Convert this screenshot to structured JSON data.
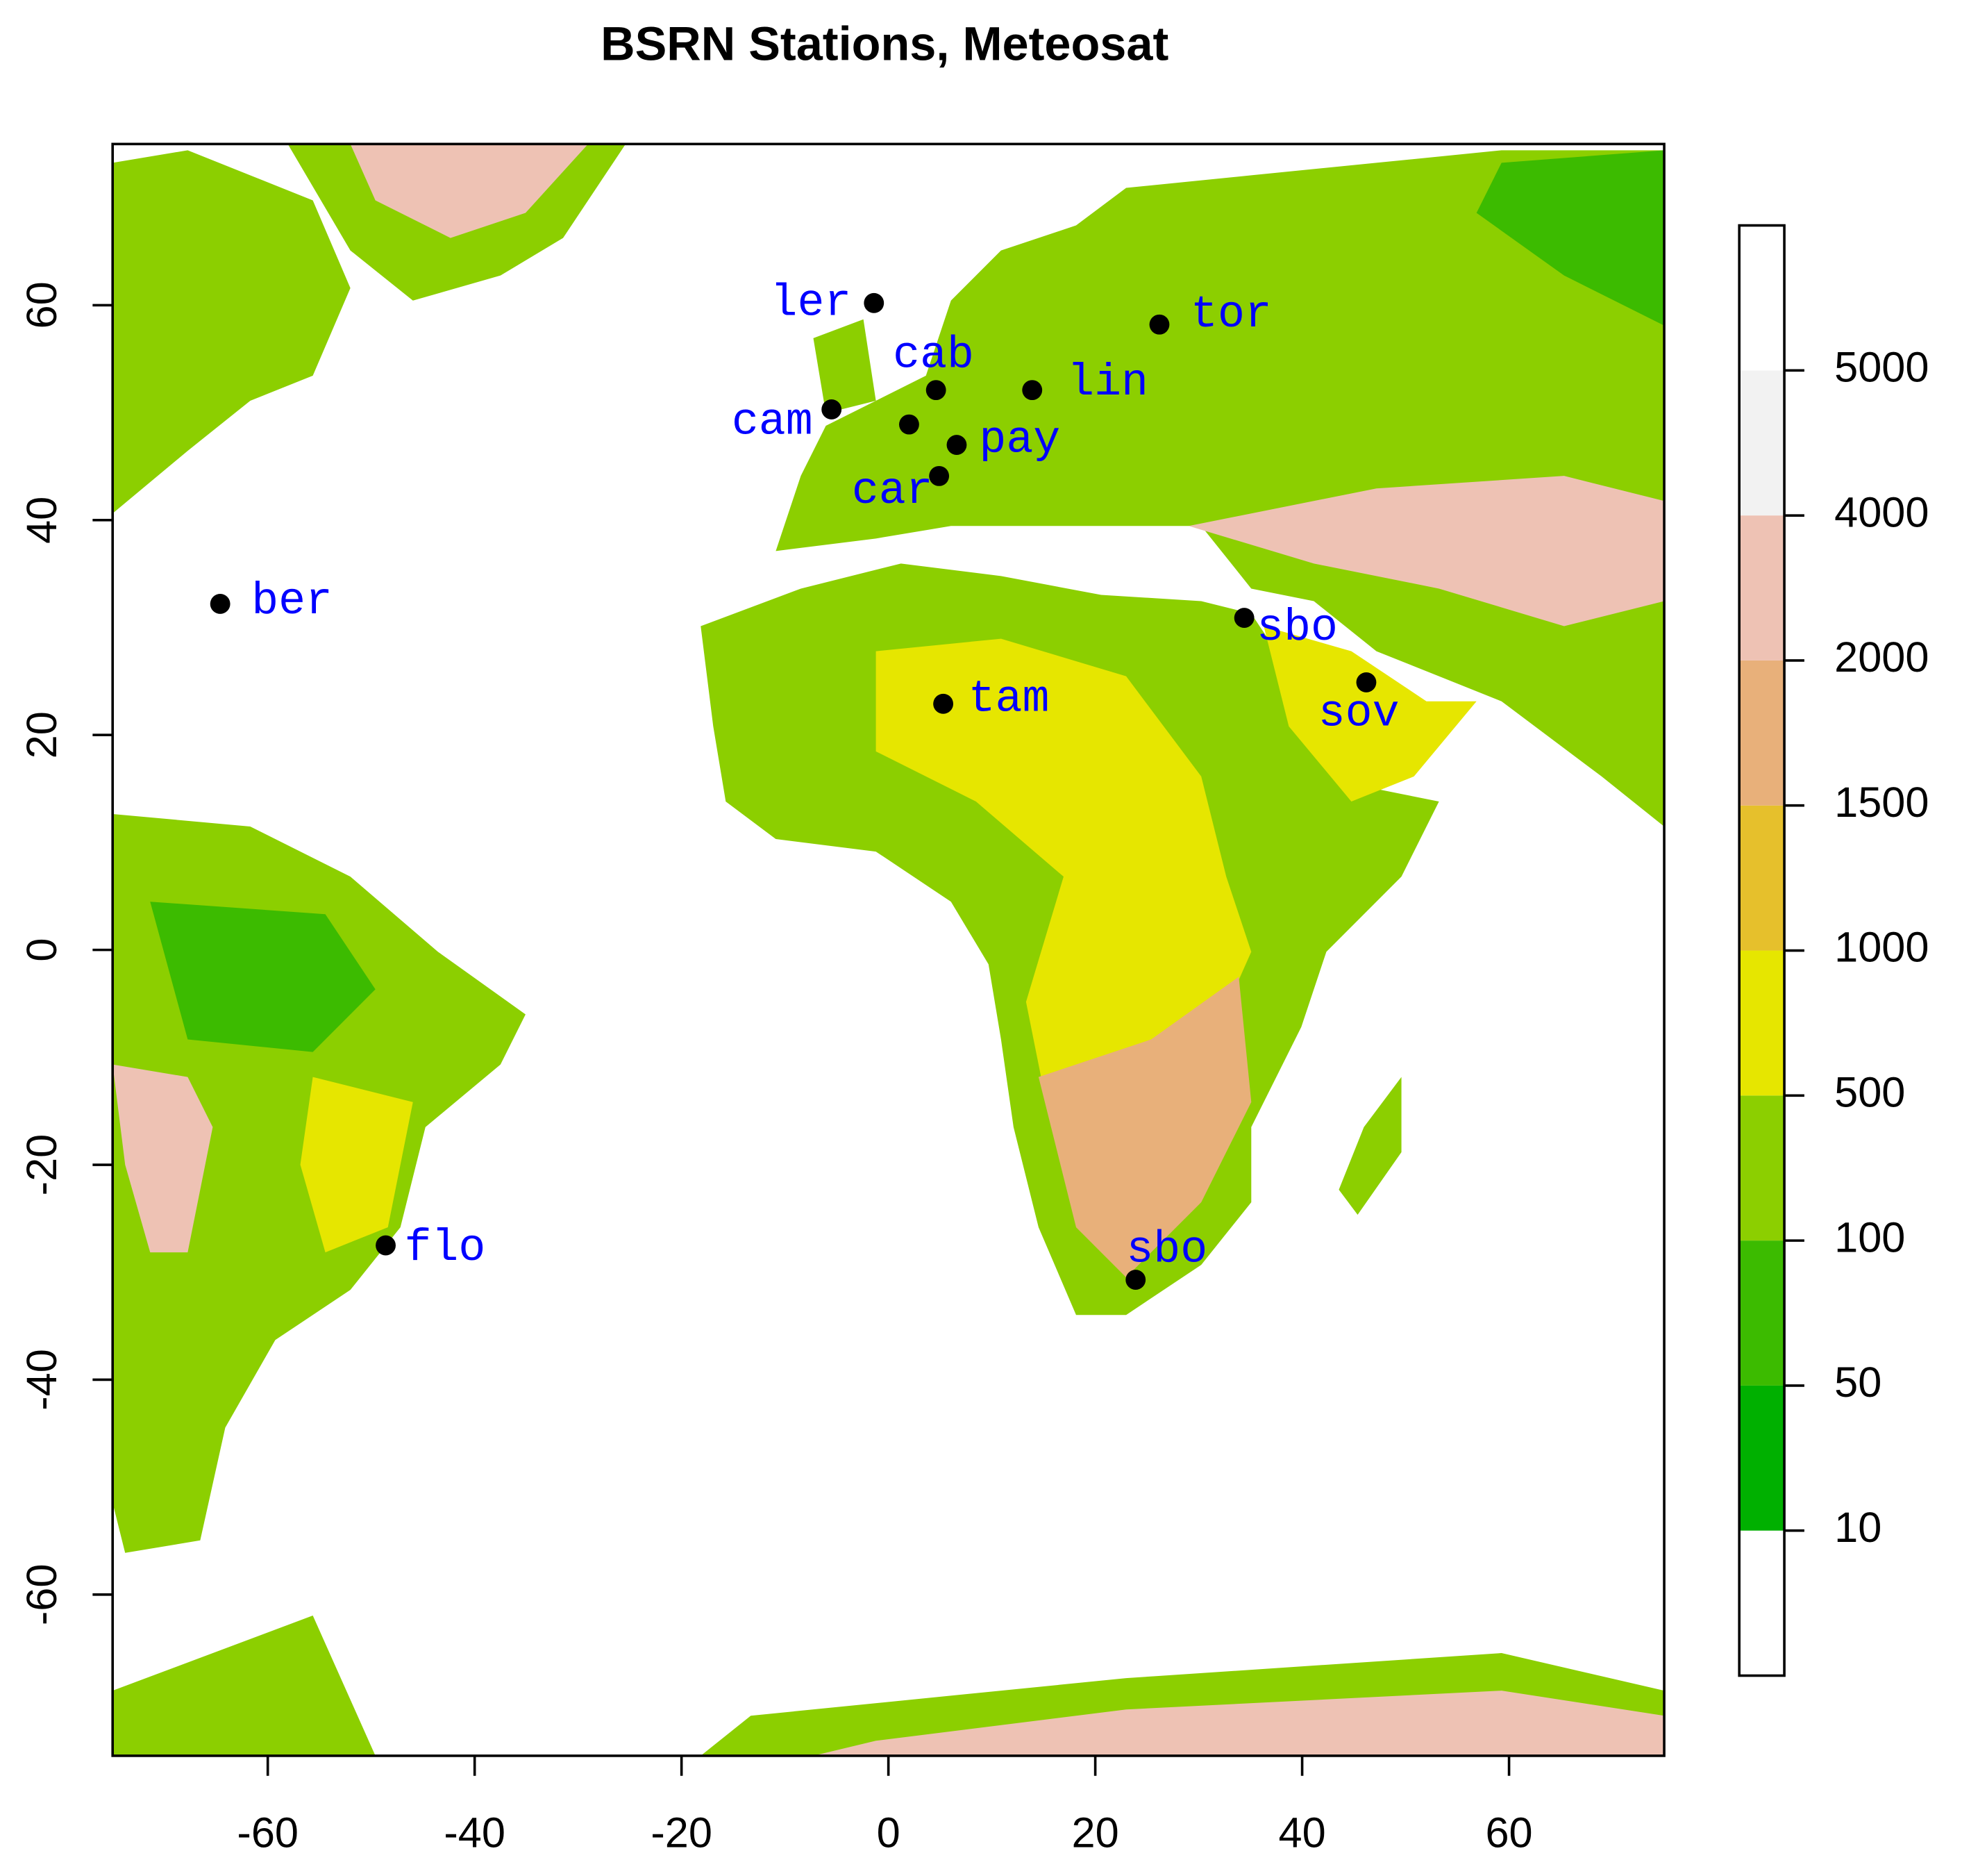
{
  "chart_data": {
    "type": "scatter",
    "title": "BSRN Stations, Meteosat",
    "x": [
      -1.4,
      26.2,
      4.6,
      13.9,
      -5.5,
      2.0,
      6.6,
      4.9,
      -64.6,
      34.4,
      46.2,
      5.3,
      -48.6,
      23.9
    ],
    "y": [
      60.2,
      58.2,
      52.1,
      52.1,
      50.3,
      48.9,
      47.0,
      44.1,
      32.2,
      30.9,
      24.9,
      22.9,
      -27.5,
      -30.7
    ],
    "labels": [
      "ler",
      "tor",
      "cab",
      "lin",
      "cam",
      null,
      "pay",
      "car",
      "ber",
      "sbo",
      "sov",
      "tam",
      "flo",
      "sbo"
    ],
    "point_color": "#000000",
    "label_color": "#0000ff",
    "xlim": [
      -75,
      75
    ],
    "ylim": [
      -75,
      75
    ],
    "xticks": [
      -60,
      -40,
      -20,
      0,
      20,
      40,
      60
    ],
    "yticks": [
      -60,
      -40,
      -20,
      0,
      20,
      40,
      60
    ],
    "colorbar": {
      "ticks": [
        10,
        50,
        100,
        500,
        1000,
        1500,
        2000,
        4000,
        5000
      ],
      "colors": [
        "#ffffff",
        "#00b000",
        "#3cbb00",
        "#8ccf00",
        "#e6e600",
        "#e6c02c",
        "#e8b07a",
        "#eec2b4",
        "#f2f2f2",
        "#ffffff"
      ]
    }
  }
}
